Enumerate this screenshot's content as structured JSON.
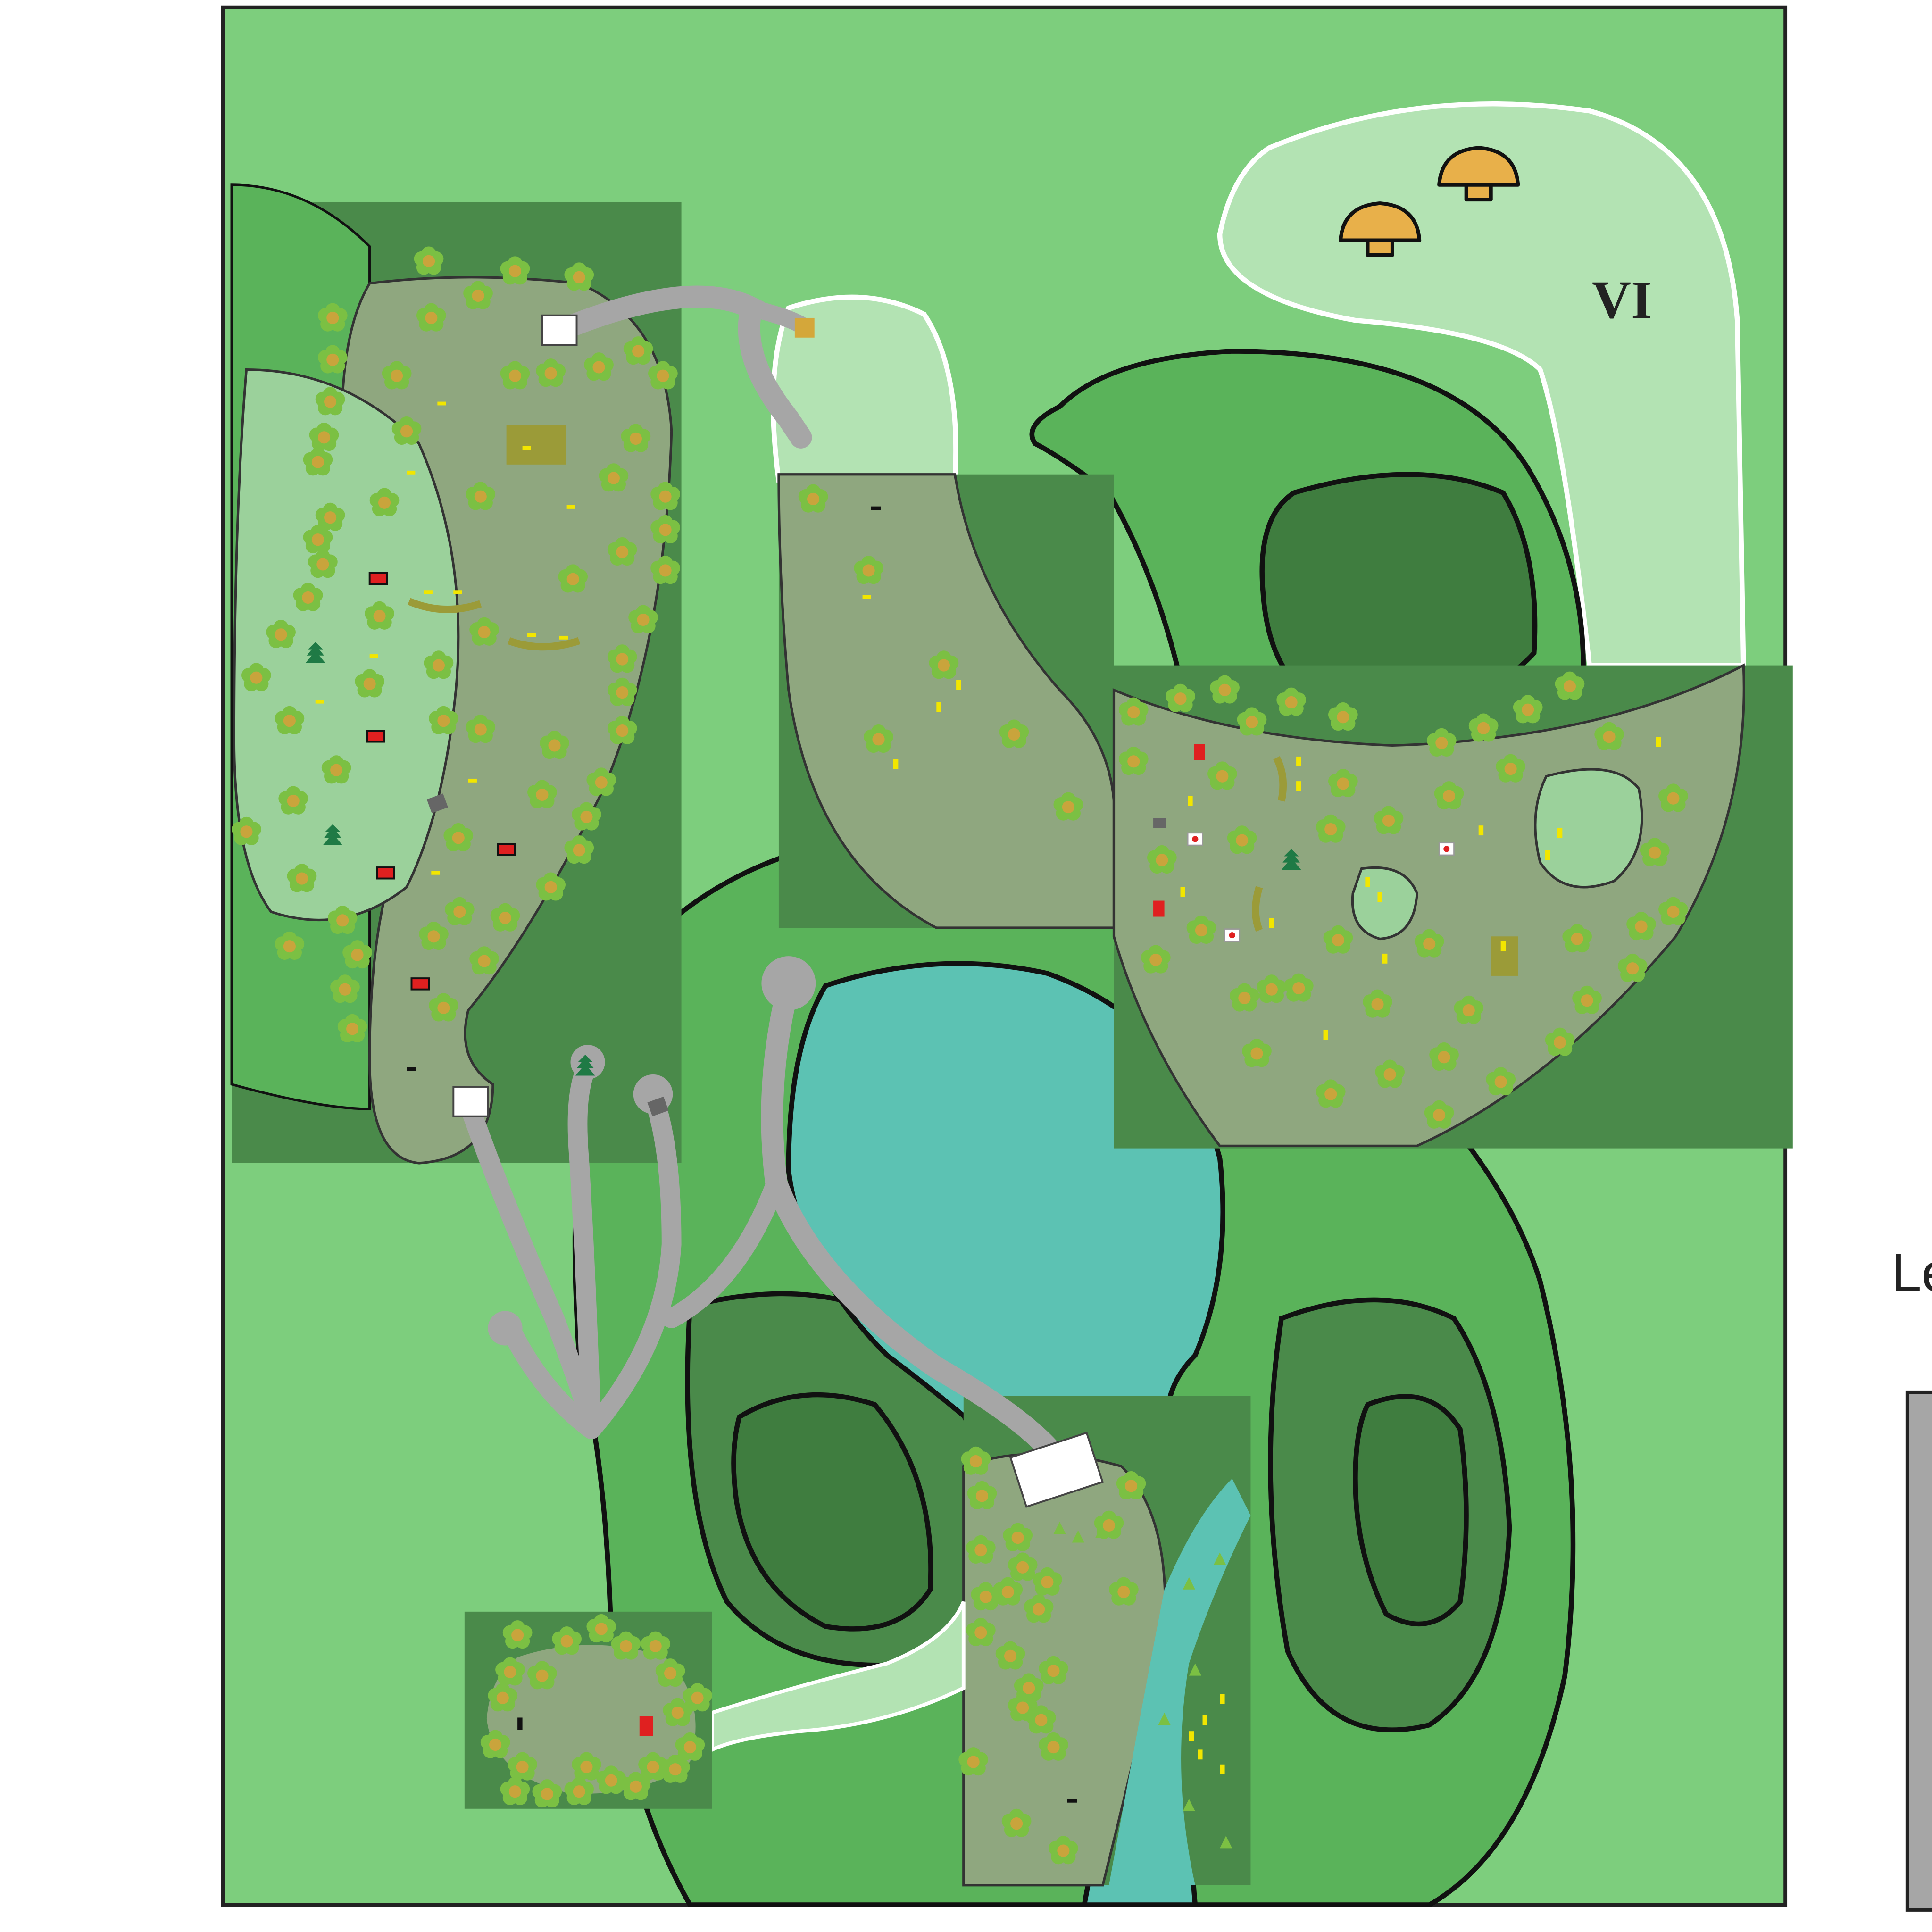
{
  "map": {
    "zone_label": "VI",
    "legend_title_partial": "Le",
    "colors": {
      "grass": "#7dce7d",
      "forest_mid": "#5ab35a",
      "forest_dark": "#4a8a4a",
      "forest_deep": "#3f7d3f",
      "clearing_pale": "#b3e3b3",
      "clearing_mid": "#9bd19b",
      "zone_gray_green": "#8fa77f",
      "water": "#5cc2b3",
      "path": "#a6a6a6",
      "tree_leaf": "#7bc043",
      "tree_core": "#d4a73a",
      "hut": "#e8b04a",
      "marker_red": "#e02020",
      "marker_yellow": "#f2e600",
      "outline": "#111111"
    },
    "icons": [
      "tree-icon",
      "hut-icon",
      "pine-icon",
      "rock-icon",
      "red-crate-icon",
      "flag-icon",
      "white-block-icon",
      "yellow-marker-icon"
    ]
  }
}
